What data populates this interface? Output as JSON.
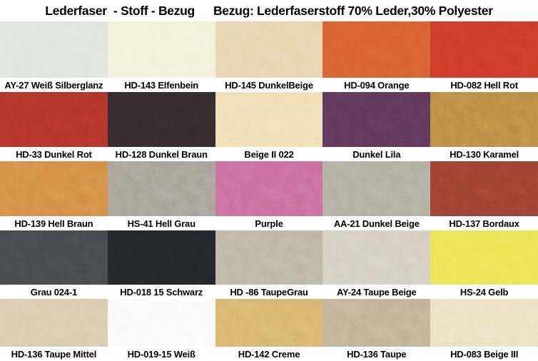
{
  "title": {
    "part1": "Lederfaser  - Stoff - Bezug",
    "part2": "Bezug: Lederfaserstoff 70% Leder,30% Polyester"
  },
  "chart_data": {
    "type": "table",
    "title": "Lederfaser - Stoff - Bezug",
    "subtitle": "Bezug: Lederfaserstoff 70% Leder,30% Polyester",
    "grid_columns": 5,
    "grid_rows": 5,
    "columns": [
      "swatch_name",
      "color_hex"
    ],
    "swatches": [
      {
        "label": "AY-27 Weiß Silberglanz",
        "color": "#dce0d9"
      },
      {
        "label": "HD-143 Elfenbein",
        "color": "#f2efd4"
      },
      {
        "label": "HD-145 DunkelBeige",
        "color": "#e2cfa1"
      },
      {
        "label": "HD-094 Orange",
        "color": "#d0562b"
      },
      {
        "label": "HD-082 Hell Rot",
        "color": "#c23424"
      },
      {
        "label": "HD-33 Dunkel Rot",
        "color": "#a52e25"
      },
      {
        "label": "HD-128 Dunkel Braun",
        "color": "#2e2629"
      },
      {
        "label": "Beige II 022",
        "color": "#eed9a8"
      },
      {
        "label": "Dunkel Lila",
        "color": "#543150"
      },
      {
        "label": "HD-130 Karamel",
        "color": "#b17b3d"
      },
      {
        "label": "HD-139 Hell Braun",
        "color": "#cd7d3e"
      },
      {
        "label": "HS-41 Hell Grau",
        "color": "#9a9488"
      },
      {
        "label": "Purple",
        "color": "#c0628e"
      },
      {
        "label": "AA-21 Dunkel Beige",
        "color": "#a4a292"
      },
      {
        "label": "HD-137 Bordaux",
        "color": "#8d3a2c"
      },
      {
        "label": "Grau 024-1",
        "color": "#3d4243"
      },
      {
        "label": "HD-018 15 Schwarz",
        "color": "#1f2125"
      },
      {
        "label": "HD -86 TaupeGrau",
        "color": "#b2aa97"
      },
      {
        "label": "AY-24 Taupe Beige",
        "color": "#cfc6b8"
      },
      {
        "label": "HS-24 Gelb",
        "color": "#e7e14b"
      },
      {
        "label": "HD-136 Taupe Mittel",
        "color": "#d3c3a2"
      },
      {
        "label": "HD-019-15 Weiß",
        "color": "#fafafa"
      },
      {
        "label": "HD-142 Creme",
        "color": "#d2aa62"
      },
      {
        "label": "HD-136 Taupe",
        "color": "#b7a687"
      },
      {
        "label": "HD-083 Beige III",
        "color": "#e8dcba"
      }
    ]
  }
}
